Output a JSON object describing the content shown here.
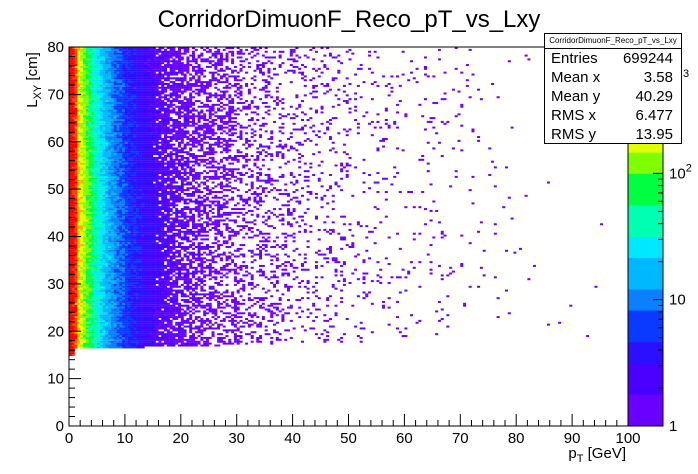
{
  "chart_data": {
    "type": "heatmap",
    "title": "CorridorDimuonF_Reco_pT_vs_Lxy",
    "xlabel": "p_T [GeV]",
    "ylabel": "L_XY [cm]",
    "xlim": [
      0,
      100
    ],
    "ylim": [
      0,
      80
    ],
    "z_scale": "log",
    "zlim": [
      1,
      1000
    ],
    "x_ticks": [
      "0",
      "10",
      "20",
      "30",
      "40",
      "50",
      "60",
      "70",
      "80",
      "90",
      "100"
    ],
    "y_ticks": [
      "0",
      "10",
      "20",
      "30",
      "40",
      "50",
      "60",
      "70",
      "80"
    ],
    "z_ticks": [
      "1",
      "10",
      "10^2"
    ],
    "z_top_label_fragment": "3",
    "grid": false,
    "density_description": {
      "lower_edge_Lxy_approx": 16,
      "peak_pT_range": [
        0,
        2
      ],
      "dense_region_pT_max": 35,
      "sparse_tail_pT_max": 95
    },
    "stats": {
      "title": "CorridorDimuonF_Reco_pT_vs_Lxy",
      "entries": {
        "label": "Entries",
        "value": "699244"
      },
      "mean_x": {
        "label": "Mean x",
        "value": "3.58"
      },
      "mean_y": {
        "label": "Mean y",
        "value": "40.29"
      },
      "rms_x": {
        "label": "RMS x",
        "value": "6.477"
      },
      "rms_y": {
        "label": "RMS y",
        "value": "13.95"
      }
    }
  },
  "colors": {
    "palette": [
      "#6a00ff",
      "#4a00ff",
      "#2a10ff",
      "#0a3aff",
      "#0a80ff",
      "#00b8ff",
      "#00e8ff",
      "#00ffb0",
      "#00ff40",
      "#80ff00",
      "#e0ff00",
      "#ffb000",
      "#ff4000",
      "#ff0000"
    ]
  }
}
